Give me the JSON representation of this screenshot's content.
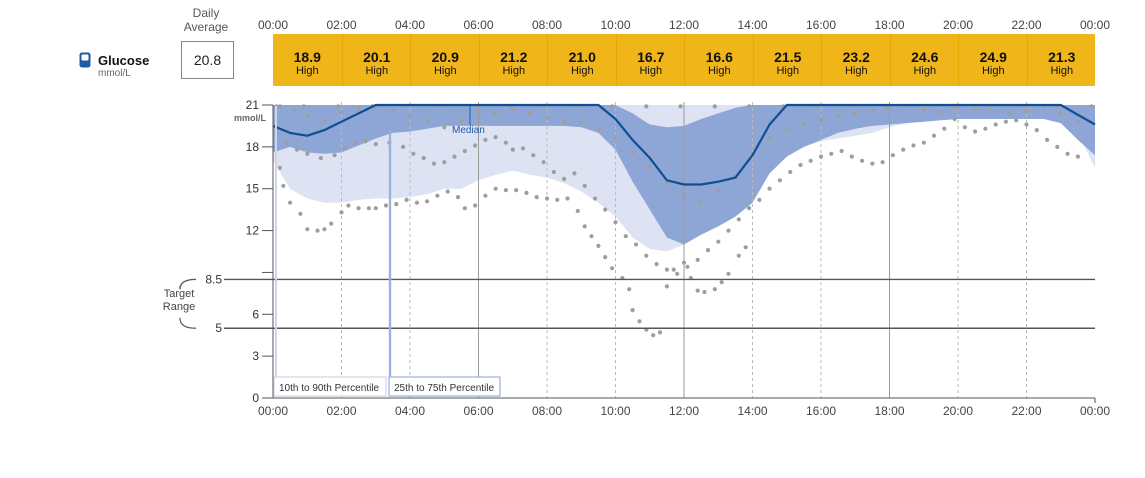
{
  "header": {
    "daily_average_label_line1": "Daily",
    "daily_average_label_line2": "Average",
    "daily_average_value": "20.8",
    "glucose_label": "Glucose",
    "glucose_unit": "mmol/L",
    "icon": "glucose-meter-icon"
  },
  "time_labels": [
    "00:00",
    "02:00",
    "04:00",
    "06:00",
    "08:00",
    "10:00",
    "12:00",
    "14:00",
    "16:00",
    "18:00",
    "20:00",
    "22:00",
    "00:00"
  ],
  "period_summary": [
    {
      "value": "18.9",
      "status": "High"
    },
    {
      "value": "20.1",
      "status": "High"
    },
    {
      "value": "20.9",
      "status": "High"
    },
    {
      "value": "21.2",
      "status": "High"
    },
    {
      "value": "21.0",
      "status": "High"
    },
    {
      "value": "16.7",
      "status": "High"
    },
    {
      "value": "16.6",
      "status": "High"
    },
    {
      "value": "21.5",
      "status": "High"
    },
    {
      "value": "23.2",
      "status": "High"
    },
    {
      "value": "24.6",
      "status": "High"
    },
    {
      "value": "24.9",
      "status": "High"
    },
    {
      "value": "21.3",
      "status": "High"
    }
  ],
  "colors": {
    "summary_band": "#f0b519",
    "outer_band": "#dde3f2",
    "inner_band": "#8ea6d6",
    "median_line": "#0d4f94",
    "points": "#9e9e9e",
    "target_line": "#555555"
  },
  "target_range": {
    "label_line1": "Target",
    "label_line2": "Range",
    "low": 5,
    "high": 8.5,
    "low_label": "5",
    "high_label": "8.5"
  },
  "chart_data": {
    "type": "area",
    "title": "",
    "xlabel": "",
    "ylabel": "",
    "y_unit_label": "mmol/L",
    "xlim": [
      0,
      24
    ],
    "ylim": [
      0,
      21
    ],
    "y_ticks": [
      0,
      3,
      6,
      12,
      15,
      18,
      21
    ],
    "legend": [
      {
        "name": "10th to 90th Percentile"
      },
      {
        "name": "25th to 75th Percentile"
      },
      {
        "name": "Median"
      }
    ],
    "x": [
      0,
      0.5,
      1,
      1.5,
      2,
      2.5,
      3,
      3.5,
      4,
      4.5,
      5,
      5.5,
      6,
      6.5,
      7,
      7.5,
      8,
      8.5,
      9,
      9.5,
      10,
      10.5,
      11,
      11.5,
      12,
      12.5,
      13,
      13.5,
      14,
      14.5,
      15,
      15.5,
      16,
      16.5,
      17,
      17.5,
      18,
      18.5,
      19,
      19.5,
      20,
      20.5,
      21,
      21.5,
      22,
      22.5,
      23,
      23.5,
      24
    ],
    "series": [
      {
        "name": "p10",
        "values": [
          17.0,
          15.0,
          14.3,
          14.0,
          14.0,
          14.2,
          14.3,
          14.3,
          14.4,
          14.6,
          15.0,
          15.0,
          15.6,
          16.0,
          16.3,
          16.0,
          15.8,
          15.4,
          14.8,
          14.0,
          13.0,
          11.5,
          10.7,
          10.5,
          11.0,
          12.0,
          12.8,
          13.3,
          14.5,
          16.4,
          17.3,
          18.0,
          18.4,
          18.6,
          18.8,
          19.0,
          19.4,
          19.7,
          20.2,
          20.4,
          20.6,
          21.0,
          21.0,
          21.0,
          21.0,
          21.0,
          20.3,
          19.0,
          16.5
        ]
      },
      {
        "name": "p25",
        "values": [
          17.6,
          18.0,
          17.6,
          17.5,
          17.6,
          18.1,
          18.6,
          19.0,
          19.1,
          19.3,
          19.5,
          19.5,
          19.5,
          19.5,
          19.5,
          19.5,
          19.5,
          19.5,
          19.4,
          19.0,
          17.8,
          15.5,
          13.5,
          11.5,
          11.0,
          11.7,
          12.3,
          13.0,
          14.0,
          16.1,
          17.3,
          18.0,
          18.5,
          19.0,
          19.3,
          19.5,
          19.6,
          19.7,
          19.8,
          19.9,
          20.0,
          20.0,
          20.0,
          20.0,
          20.0,
          20.0,
          19.7,
          18.5,
          17.4
        ]
      },
      {
        "name": "p75",
        "values": [
          21.0,
          21.0,
          21.0,
          21.0,
          21.0,
          21.0,
          21.0,
          21.0,
          21.0,
          21.0,
          21.0,
          21.0,
          21.0,
          21.0,
          21.0,
          21.0,
          21.0,
          21.0,
          21.0,
          21.0,
          21.0,
          20.4,
          19.6,
          19.4,
          19.5,
          20.0,
          20.4,
          20.8,
          21.0,
          21.0,
          21.0,
          21.0,
          21.0,
          21.0,
          21.0,
          21.0,
          21.0,
          21.0,
          21.0,
          21.0,
          21.0,
          21.0,
          21.0,
          21.0,
          21.0,
          21.0,
          21.0,
          21.0,
          21.0
        ]
      },
      {
        "name": "p90",
        "values": [
          21.0,
          21.0,
          21.0,
          21.0,
          21.0,
          21.0,
          21.0,
          21.0,
          21.0,
          21.0,
          21.0,
          21.0,
          21.0,
          21.0,
          21.0,
          21.0,
          21.0,
          21.0,
          21.0,
          21.0,
          21.0,
          21.0,
          21.0,
          21.0,
          21.0,
          21.0,
          21.0,
          21.0,
          21.0,
          21.0,
          21.0,
          21.0,
          21.0,
          21.0,
          21.0,
          21.0,
          21.0,
          21.0,
          21.0,
          21.0,
          21.0,
          21.0,
          21.0,
          21.0,
          21.0,
          21.0,
          21.0,
          21.0,
          21.0
        ]
      },
      {
        "name": "Median",
        "values": [
          19.5,
          19.0,
          18.8,
          19.2,
          19.8,
          20.4,
          21.0,
          21.0,
          21.0,
          21.0,
          21.0,
          21.0,
          21.0,
          21.0,
          21.0,
          21.0,
          21.0,
          21.0,
          21.0,
          21.0,
          20.0,
          18.5,
          17.2,
          15.6,
          15.3,
          15.3,
          15.5,
          15.8,
          17.4,
          19.6,
          21.0,
          21.0,
          21.0,
          21.0,
          21.0,
          21.0,
          21.0,
          21.0,
          21.0,
          21.0,
          21.0,
          21.0,
          21.0,
          21.0,
          21.0,
          21.0,
          21.0,
          20.3,
          19.6
        ]
      }
    ],
    "points": [
      [
        0.2,
        16.5
      ],
      [
        0.3,
        15.2
      ],
      [
        0.5,
        14.0
      ],
      [
        0.8,
        13.2
      ],
      [
        1.0,
        12.1
      ],
      [
        1.3,
        12.0
      ],
      [
        1.5,
        12.1
      ],
      [
        1.7,
        12.5
      ],
      [
        2.0,
        13.3
      ],
      [
        2.2,
        13.8
      ],
      [
        2.5,
        13.6
      ],
      [
        2.8,
        13.6
      ],
      [
        3.0,
        13.6
      ],
      [
        3.3,
        13.8
      ],
      [
        3.6,
        13.9
      ],
      [
        3.9,
        14.2
      ],
      [
        4.2,
        14.0
      ],
      [
        4.5,
        14.1
      ],
      [
        4.8,
        14.5
      ],
      [
        5.1,
        14.8
      ],
      [
        5.4,
        14.4
      ],
      [
        5.6,
        13.6
      ],
      [
        5.9,
        13.8
      ],
      [
        6.2,
        14.5
      ],
      [
        6.5,
        15.0
      ],
      [
        6.8,
        14.9
      ],
      [
        7.1,
        14.9
      ],
      [
        7.4,
        14.7
      ],
      [
        7.7,
        14.4
      ],
      [
        8.0,
        14.3
      ],
      [
        8.3,
        14.2
      ],
      [
        8.6,
        14.3
      ],
      [
        8.9,
        13.4
      ],
      [
        9.1,
        12.3
      ],
      [
        9.3,
        11.6
      ],
      [
        9.5,
        10.9
      ],
      [
        9.7,
        10.1
      ],
      [
        9.9,
        9.3
      ],
      [
        10.2,
        8.6
      ],
      [
        10.4,
        7.8
      ],
      [
        10.5,
        6.3
      ],
      [
        10.7,
        5.5
      ],
      [
        10.9,
        4.9
      ],
      [
        11.1,
        4.5
      ],
      [
        11.3,
        4.7
      ],
      [
        11.5,
        8.0
      ],
      [
        11.7,
        9.2
      ],
      [
        12.0,
        9.7
      ],
      [
        12.2,
        8.6
      ],
      [
        12.4,
        7.7
      ],
      [
        12.6,
        7.6
      ],
      [
        12.9,
        7.8
      ],
      [
        13.1,
        8.3
      ],
      [
        13.3,
        8.9
      ],
      [
        13.6,
        10.2
      ],
      [
        13.8,
        10.8
      ],
      [
        0.1,
        19.0
      ],
      [
        0.4,
        18.3
      ],
      [
        0.7,
        17.8
      ],
      [
        1.0,
        17.5
      ],
      [
        1.4,
        17.2
      ],
      [
        1.8,
        17.4
      ],
      [
        2.1,
        17.9
      ],
      [
        2.4,
        18.3
      ],
      [
        2.7,
        18.4
      ],
      [
        3.0,
        18.2
      ],
      [
        3.4,
        18.3
      ],
      [
        3.8,
        18.0
      ],
      [
        4.1,
        17.5
      ],
      [
        4.4,
        17.2
      ],
      [
        4.7,
        16.8
      ],
      [
        5.0,
        16.9
      ],
      [
        5.3,
        17.3
      ],
      [
        5.6,
        17.7
      ],
      [
        5.9,
        18.1
      ],
      [
        6.2,
        18.5
      ],
      [
        6.5,
        18.7
      ],
      [
        6.8,
        18.3
      ],
      [
        7.0,
        17.8
      ],
      [
        7.3,
        17.9
      ],
      [
        7.6,
        17.4
      ],
      [
        7.9,
        16.9
      ],
      [
        8.2,
        16.2
      ],
      [
        8.5,
        15.7
      ],
      [
        8.8,
        16.1
      ],
      [
        9.1,
        15.2
      ],
      [
        9.4,
        14.3
      ],
      [
        9.7,
        13.5
      ],
      [
        10.0,
        12.6
      ],
      [
        10.3,
        11.6
      ],
      [
        10.6,
        11.0
      ],
      [
        10.9,
        10.2
      ],
      [
        11.2,
        9.6
      ],
      [
        11.5,
        9.2
      ],
      [
        11.8,
        8.9
      ],
      [
        12.1,
        9.4
      ],
      [
        12.4,
        9.9
      ],
      [
        12.7,
        10.6
      ],
      [
        13.0,
        11.2
      ],
      [
        13.3,
        12.0
      ],
      [
        13.6,
        12.8
      ],
      [
        13.9,
        13.6
      ],
      [
        14.2,
        14.2
      ],
      [
        14.5,
        15.0
      ],
      [
        14.8,
        15.6
      ],
      [
        15.1,
        16.2
      ],
      [
        15.4,
        16.7
      ],
      [
        15.7,
        17.0
      ],
      [
        16.0,
        17.3
      ],
      [
        16.3,
        17.5
      ],
      [
        16.6,
        17.7
      ],
      [
        16.9,
        17.3
      ],
      [
        17.2,
        17.0
      ],
      [
        17.5,
        16.8
      ],
      [
        17.8,
        16.9
      ],
      [
        18.1,
        17.4
      ],
      [
        18.4,
        17.8
      ],
      [
        18.7,
        18.1
      ],
      [
        19.0,
        18.3
      ],
      [
        19.3,
        18.8
      ],
      [
        19.6,
        19.3
      ],
      [
        19.9,
        20.0
      ],
      [
        20.2,
        19.4
      ],
      [
        20.5,
        19.1
      ],
      [
        20.8,
        19.3
      ],
      [
        21.1,
        19.6
      ],
      [
        21.4,
        19.8
      ],
      [
        21.7,
        19.9
      ],
      [
        22.0,
        19.6
      ],
      [
        22.3,
        19.2
      ],
      [
        22.6,
        18.5
      ],
      [
        22.9,
        18.0
      ],
      [
        23.2,
        17.5
      ],
      [
        23.5,
        17.3
      ],
      [
        0.2,
        20.9
      ],
      [
        0.6,
        20.6
      ],
      [
        1.0,
        20.2
      ],
      [
        1.5,
        19.9
      ],
      [
        2.0,
        20.5
      ],
      [
        2.5,
        20.8
      ],
      [
        3.0,
        20.9
      ],
      [
        3.5,
        20.6
      ],
      [
        4.0,
        20.2
      ],
      [
        4.5,
        19.8
      ],
      [
        5.0,
        19.4
      ],
      [
        5.5,
        19.8
      ],
      [
        6.0,
        20.1
      ],
      [
        6.5,
        20.4
      ],
      [
        7.0,
        20.7
      ],
      [
        7.5,
        20.4
      ],
      [
        8.0,
        20.1
      ],
      [
        8.5,
        19.8
      ],
      [
        9.0,
        19.7
      ],
      [
        9.5,
        19.2
      ],
      [
        10.0,
        18.6
      ],
      [
        10.5,
        17.6
      ],
      [
        11.0,
        16.6
      ],
      [
        11.5,
        15.4
      ],
      [
        12.0,
        14.6
      ],
      [
        12.5,
        14.0
      ],
      [
        13.0,
        14.8
      ],
      [
        13.5,
        15.9
      ],
      [
        14.0,
        17.5
      ],
      [
        14.5,
        18.6
      ],
      [
        15.0,
        19.3
      ],
      [
        15.5,
        19.6
      ],
      [
        16.0,
        19.9
      ],
      [
        16.5,
        20.2
      ],
      [
        17.0,
        20.4
      ],
      [
        17.5,
        20.6
      ],
      [
        18.0,
        20.8
      ],
      [
        18.5,
        20.9
      ],
      [
        19.0,
        20.7
      ],
      [
        19.5,
        20.5
      ],
      [
        20.0,
        20.8
      ],
      [
        20.5,
        20.7
      ],
      [
        21.0,
        20.5
      ],
      [
        21.5,
        20.3
      ],
      [
        22.0,
        20.6
      ],
      [
        22.5,
        20.9
      ],
      [
        23.0,
        20.4
      ],
      [
        23.5,
        19.8
      ],
      [
        0.1,
        20.9
      ],
      [
        0.9,
        20.9
      ],
      [
        1.9,
        20.9
      ],
      [
        2.9,
        20.9
      ],
      [
        3.9,
        20.9
      ],
      [
        4.9,
        20.9
      ],
      [
        5.9,
        20.9
      ],
      [
        6.9,
        20.9
      ],
      [
        7.9,
        20.9
      ],
      [
        8.9,
        20.9
      ],
      [
        9.9,
        20.9
      ],
      [
        10.9,
        20.9
      ],
      [
        11.9,
        20.9
      ],
      [
        12.9,
        20.9
      ],
      [
        13.9,
        20.9
      ],
      [
        14.9,
        20.9
      ],
      [
        15.9,
        20.9
      ],
      [
        16.9,
        20.9
      ],
      [
        17.9,
        20.9
      ],
      [
        18.9,
        20.9
      ],
      [
        19.9,
        20.9
      ],
      [
        20.9,
        20.9
      ],
      [
        21.9,
        20.9
      ],
      [
        22.9,
        20.9
      ],
      [
        23.9,
        20.9
      ]
    ]
  },
  "legend_boxes": {
    "outer": "10th to 90th Percentile",
    "inner": "25th to 75th Percentile",
    "median": "Median"
  }
}
